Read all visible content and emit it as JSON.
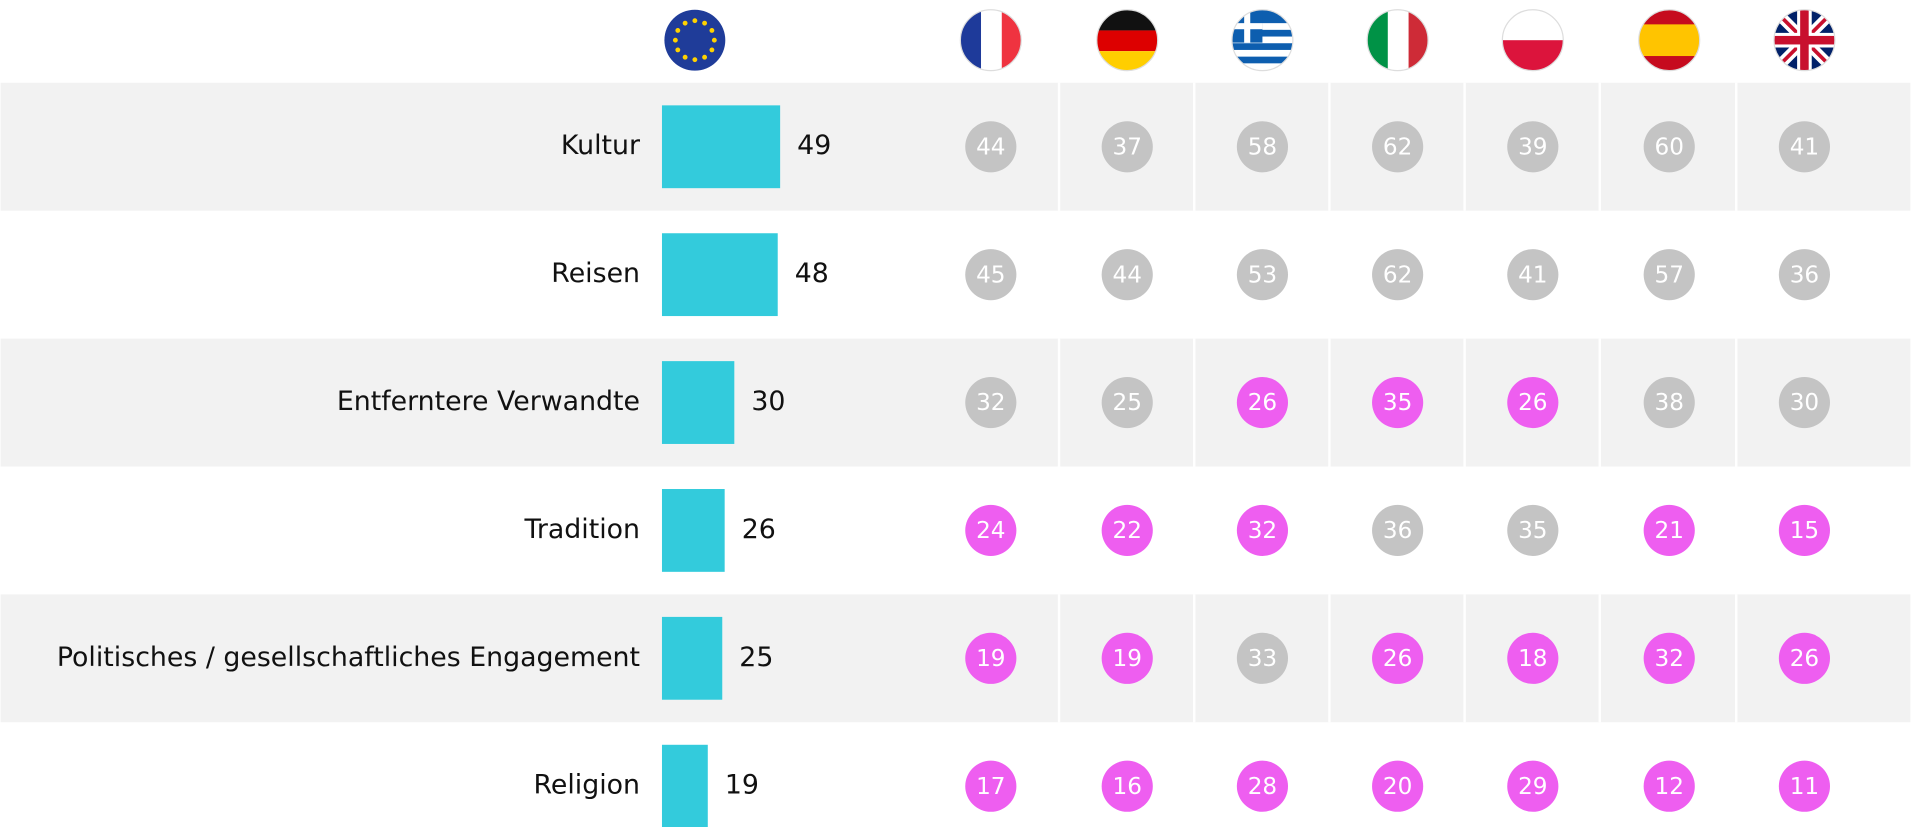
{
  "chart_data": {
    "type": "bar",
    "categories": [
      "Kultur",
      "Reisen",
      "Entferntere Verwandte",
      "Tradition",
      "Politisches / gesellschaftliches Engagement",
      "Religion"
    ],
    "values": [
      49,
      48,
      30,
      26,
      25,
      19
    ],
    "color": "#33cbdc",
    "series": [
      {
        "values": [
          44,
          45,
          32,
          24,
          19,
          17
        ],
        "colors": [
          "#c4c4c4",
          "#c4c4c4",
          "#c4c4c4",
          "#ee5ef0",
          "#ee5ef0",
          "#ee5ef0"
        ]
      },
      {
        "values": [
          37,
          44,
          25,
          22,
          19,
          16
        ],
        "colors": [
          "#c4c4c4",
          "#c4c4c4",
          "#c4c4c4",
          "#ee5ef0",
          "#ee5ef0",
          "#ee5ef0"
        ]
      },
      {
        "values": [
          58,
          53,
          26,
          32,
          33,
          28
        ],
        "colors": [
          "#c4c4c4",
          "#c4c4c4",
          "#ee5ef0",
          "#ee5ef0",
          "#c4c4c4",
          "#ee5ef0"
        ]
      },
      {
        "values": [
          62,
          62,
          35,
          36,
          26,
          20
        ],
        "colors": [
          "#c4c4c4",
          "#c4c4c4",
          "#ee5ef0",
          "#c4c4c4",
          "#ee5ef0",
          "#ee5ef0"
        ]
      },
      {
        "values": [
          39,
          41,
          26,
          35,
          18,
          29
        ],
        "colors": [
          "#c4c4c4",
          "#c4c4c4",
          "#ee5ef0",
          "#c4c4c4",
          "#ee5ef0",
          "#ee5ef0"
        ]
      },
      {
        "values": [
          60,
          57,
          38,
          21,
          32,
          12
        ],
        "colors": [
          "#c4c4c4",
          "#c4c4c4",
          "#c4c4c4",
          "#ee5ef0",
          "#ee5ef0",
          "#ee5ef0"
        ]
      },
      {
        "values": [
          41,
          36,
          30,
          15,
          26,
          11
        ],
        "colors": [
          "#c4c4c4",
          "#c4c4c4",
          "#c4c4c4",
          "#ee5ef0",
          "#ee5ef0",
          "#ee5ef0"
        ]
      }
    ]
  }
}
